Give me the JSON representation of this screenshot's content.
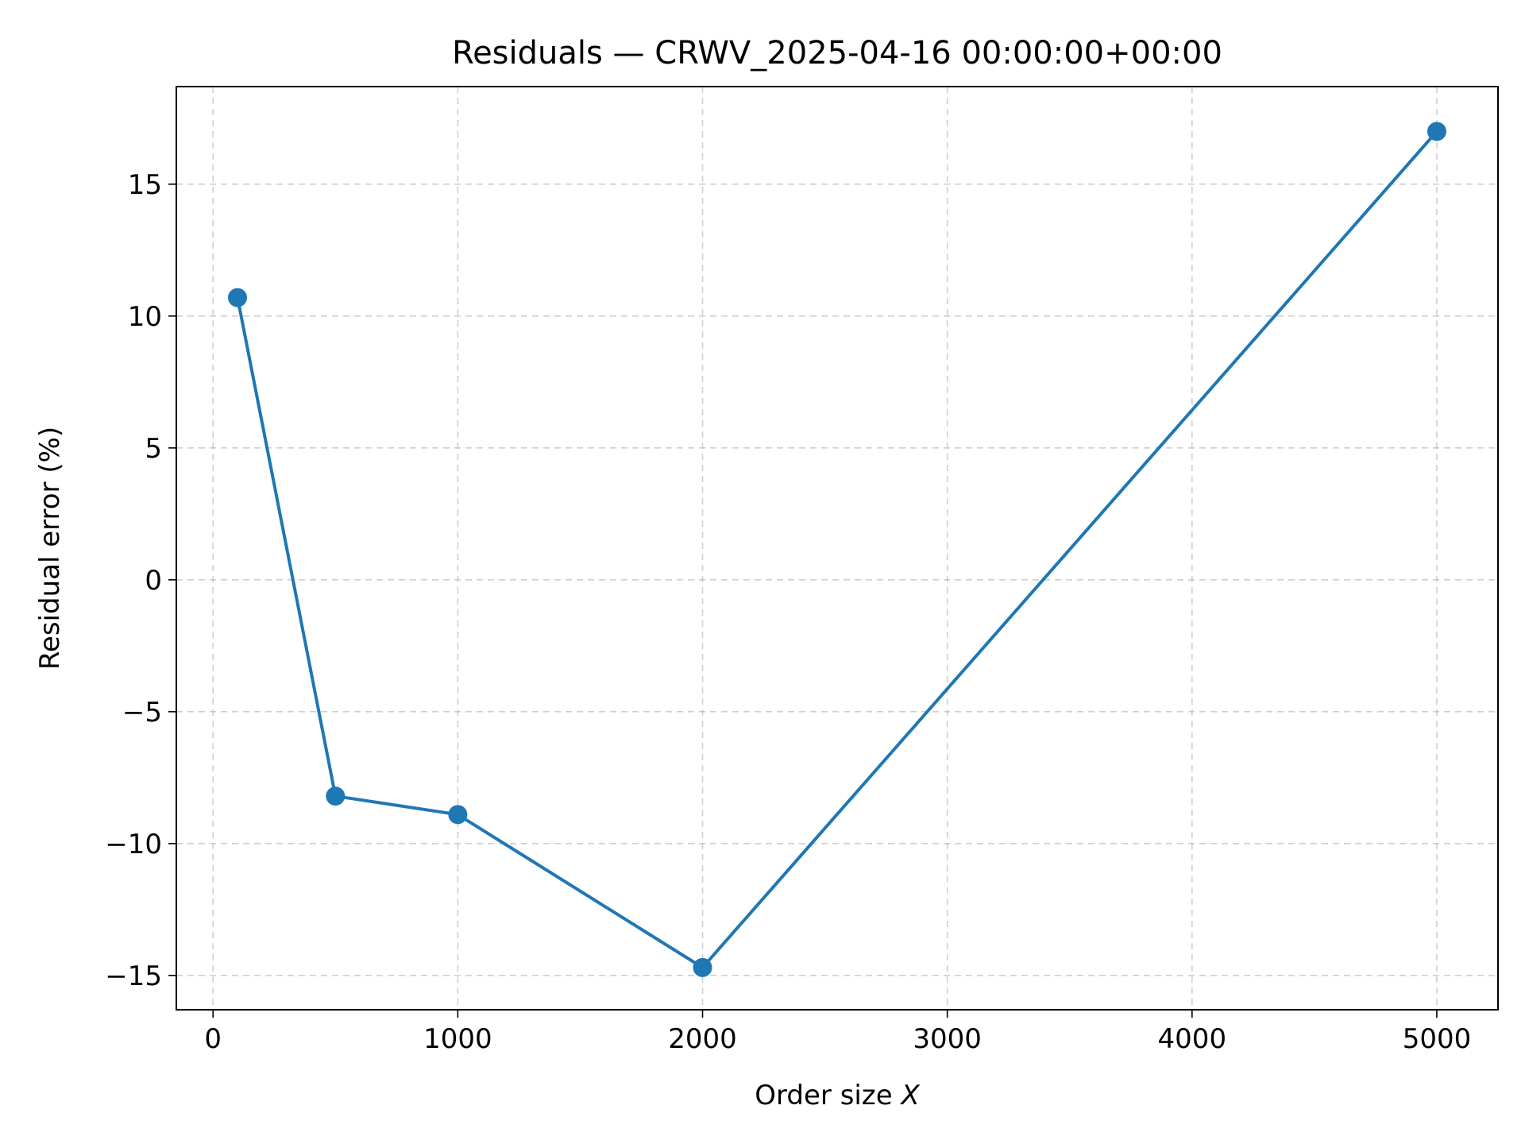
{
  "chart_data": {
    "type": "line",
    "title": "Residuals — CRWV_2025-04-16 00:00:00+00:00",
    "xlabel_prefix": "Order size ",
    "xlabel_var": "X",
    "ylabel": "Residual error (%)",
    "xlim": [
      -150,
      5250
    ],
    "ylim": [
      -16.3,
      18.7
    ],
    "xticks": [
      0,
      1000,
      2000,
      3000,
      4000,
      5000
    ],
    "xtick_labels": [
      "0",
      "1000",
      "2000",
      "3000",
      "4000",
      "5000"
    ],
    "yticks": [
      -15,
      -10,
      -5,
      0,
      5,
      10,
      15
    ],
    "ytick_labels": [
      "−15",
      "−10",
      "−5",
      "0",
      "5",
      "10",
      "15"
    ],
    "grid": true,
    "series": [
      {
        "color": "#1f77b4",
        "marker": "circle",
        "x": [
          100,
          500,
          1000,
          2000,
          5000
        ],
        "y": [
          10.7,
          -8.2,
          -8.9,
          -14.7,
          17.0
        ]
      }
    ]
  }
}
